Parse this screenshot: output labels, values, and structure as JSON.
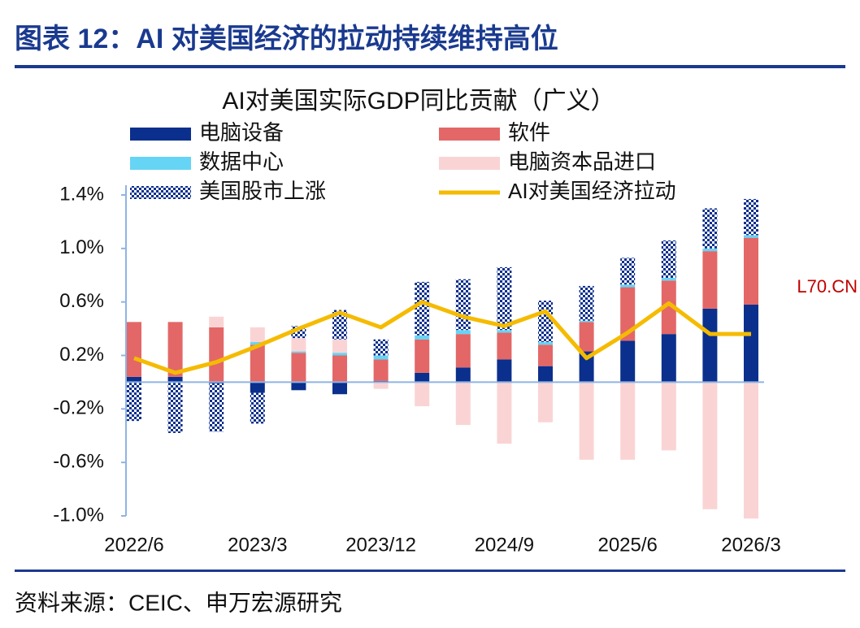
{
  "header": "图表 12：AI 对美国经济的拉动持续维持高位",
  "source": "资料来源：CEIC、申万宏源研究",
  "watermark": "L70.CN",
  "chart_data": {
    "type": "bar",
    "stacked": true,
    "title": "AI对美国实际GDP同比贡献（广义）",
    "categories": [
      "2022/6",
      null,
      null,
      "2023/3",
      null,
      null,
      "2023/12",
      null,
      null,
      "2024/9",
      null,
      null,
      "2025/6",
      null,
      null,
      "2026/3"
    ],
    "ylim": [
      -1.0,
      1.4
    ],
    "yticks": [
      {
        "value": -1.0,
        "label": "-1.0%"
      },
      {
        "value": -0.6,
        "label": "-0.6%"
      },
      {
        "value": -0.2,
        "label": "-0.2%"
      },
      {
        "value": 0.2,
        "label": "0.2%"
      },
      {
        "value": 0.6,
        "label": "0.6%"
      },
      {
        "value": 1.0,
        "label": "1.0%"
      },
      {
        "value": 1.4,
        "label": "1.4%"
      }
    ],
    "series": [
      {
        "name": "电脑设备",
        "color": "#0b2f8c",
        "values": [
          0.04,
          0.04,
          -0.01,
          -0.08,
          -0.06,
          -0.09,
          0.01,
          0.07,
          0.11,
          0.17,
          0.12,
          0.23,
          0.31,
          0.36,
          0.55,
          0.58
        ]
      },
      {
        "name": "软件",
        "color": "#e36767",
        "values": [
          0.41,
          0.41,
          0.41,
          0.28,
          0.22,
          0.2,
          0.16,
          0.25,
          0.25,
          0.2,
          0.16,
          0.22,
          0.4,
          0.4,
          0.43,
          0.5
        ]
      },
      {
        "name": "数据中心",
        "color": "#66d4f5",
        "values": [
          0,
          0,
          0,
          0.02,
          0.01,
          0.02,
          0.03,
          0.03,
          0.03,
          0.02,
          0.02,
          0.01,
          0.02,
          0.02,
          0.02,
          0.02
        ]
      },
      {
        "name": "电脑资本品进口",
        "color": "#fad4d4",
        "values": [
          0,
          0,
          0.08,
          0.11,
          0.1,
          0.1,
          -0.05,
          -0.18,
          -0.32,
          -0.46,
          -0.3,
          -0.58,
          -0.58,
          -0.51,
          -0.95,
          -1.02
        ]
      },
      {
        "name": "美国股市上涨",
        "color": "#0b2f8c",
        "pattern": "checker",
        "values": [
          -0.29,
          -0.38,
          -0.36,
          -0.23,
          0.09,
          0.22,
          0.12,
          0.4,
          0.38,
          0.47,
          0.31,
          0.26,
          0.2,
          0.28,
          0.3,
          0.27
        ]
      },
      {
        "name": "AI对美国经济拉动",
        "type": "line",
        "color": "#f5bb00",
        "values": [
          0.18,
          0.07,
          0.15,
          0.27,
          0.4,
          0.52,
          0.41,
          0.6,
          0.49,
          0.42,
          0.53,
          0.18,
          0.37,
          0.59,
          0.36,
          0.36
        ]
      }
    ]
  }
}
